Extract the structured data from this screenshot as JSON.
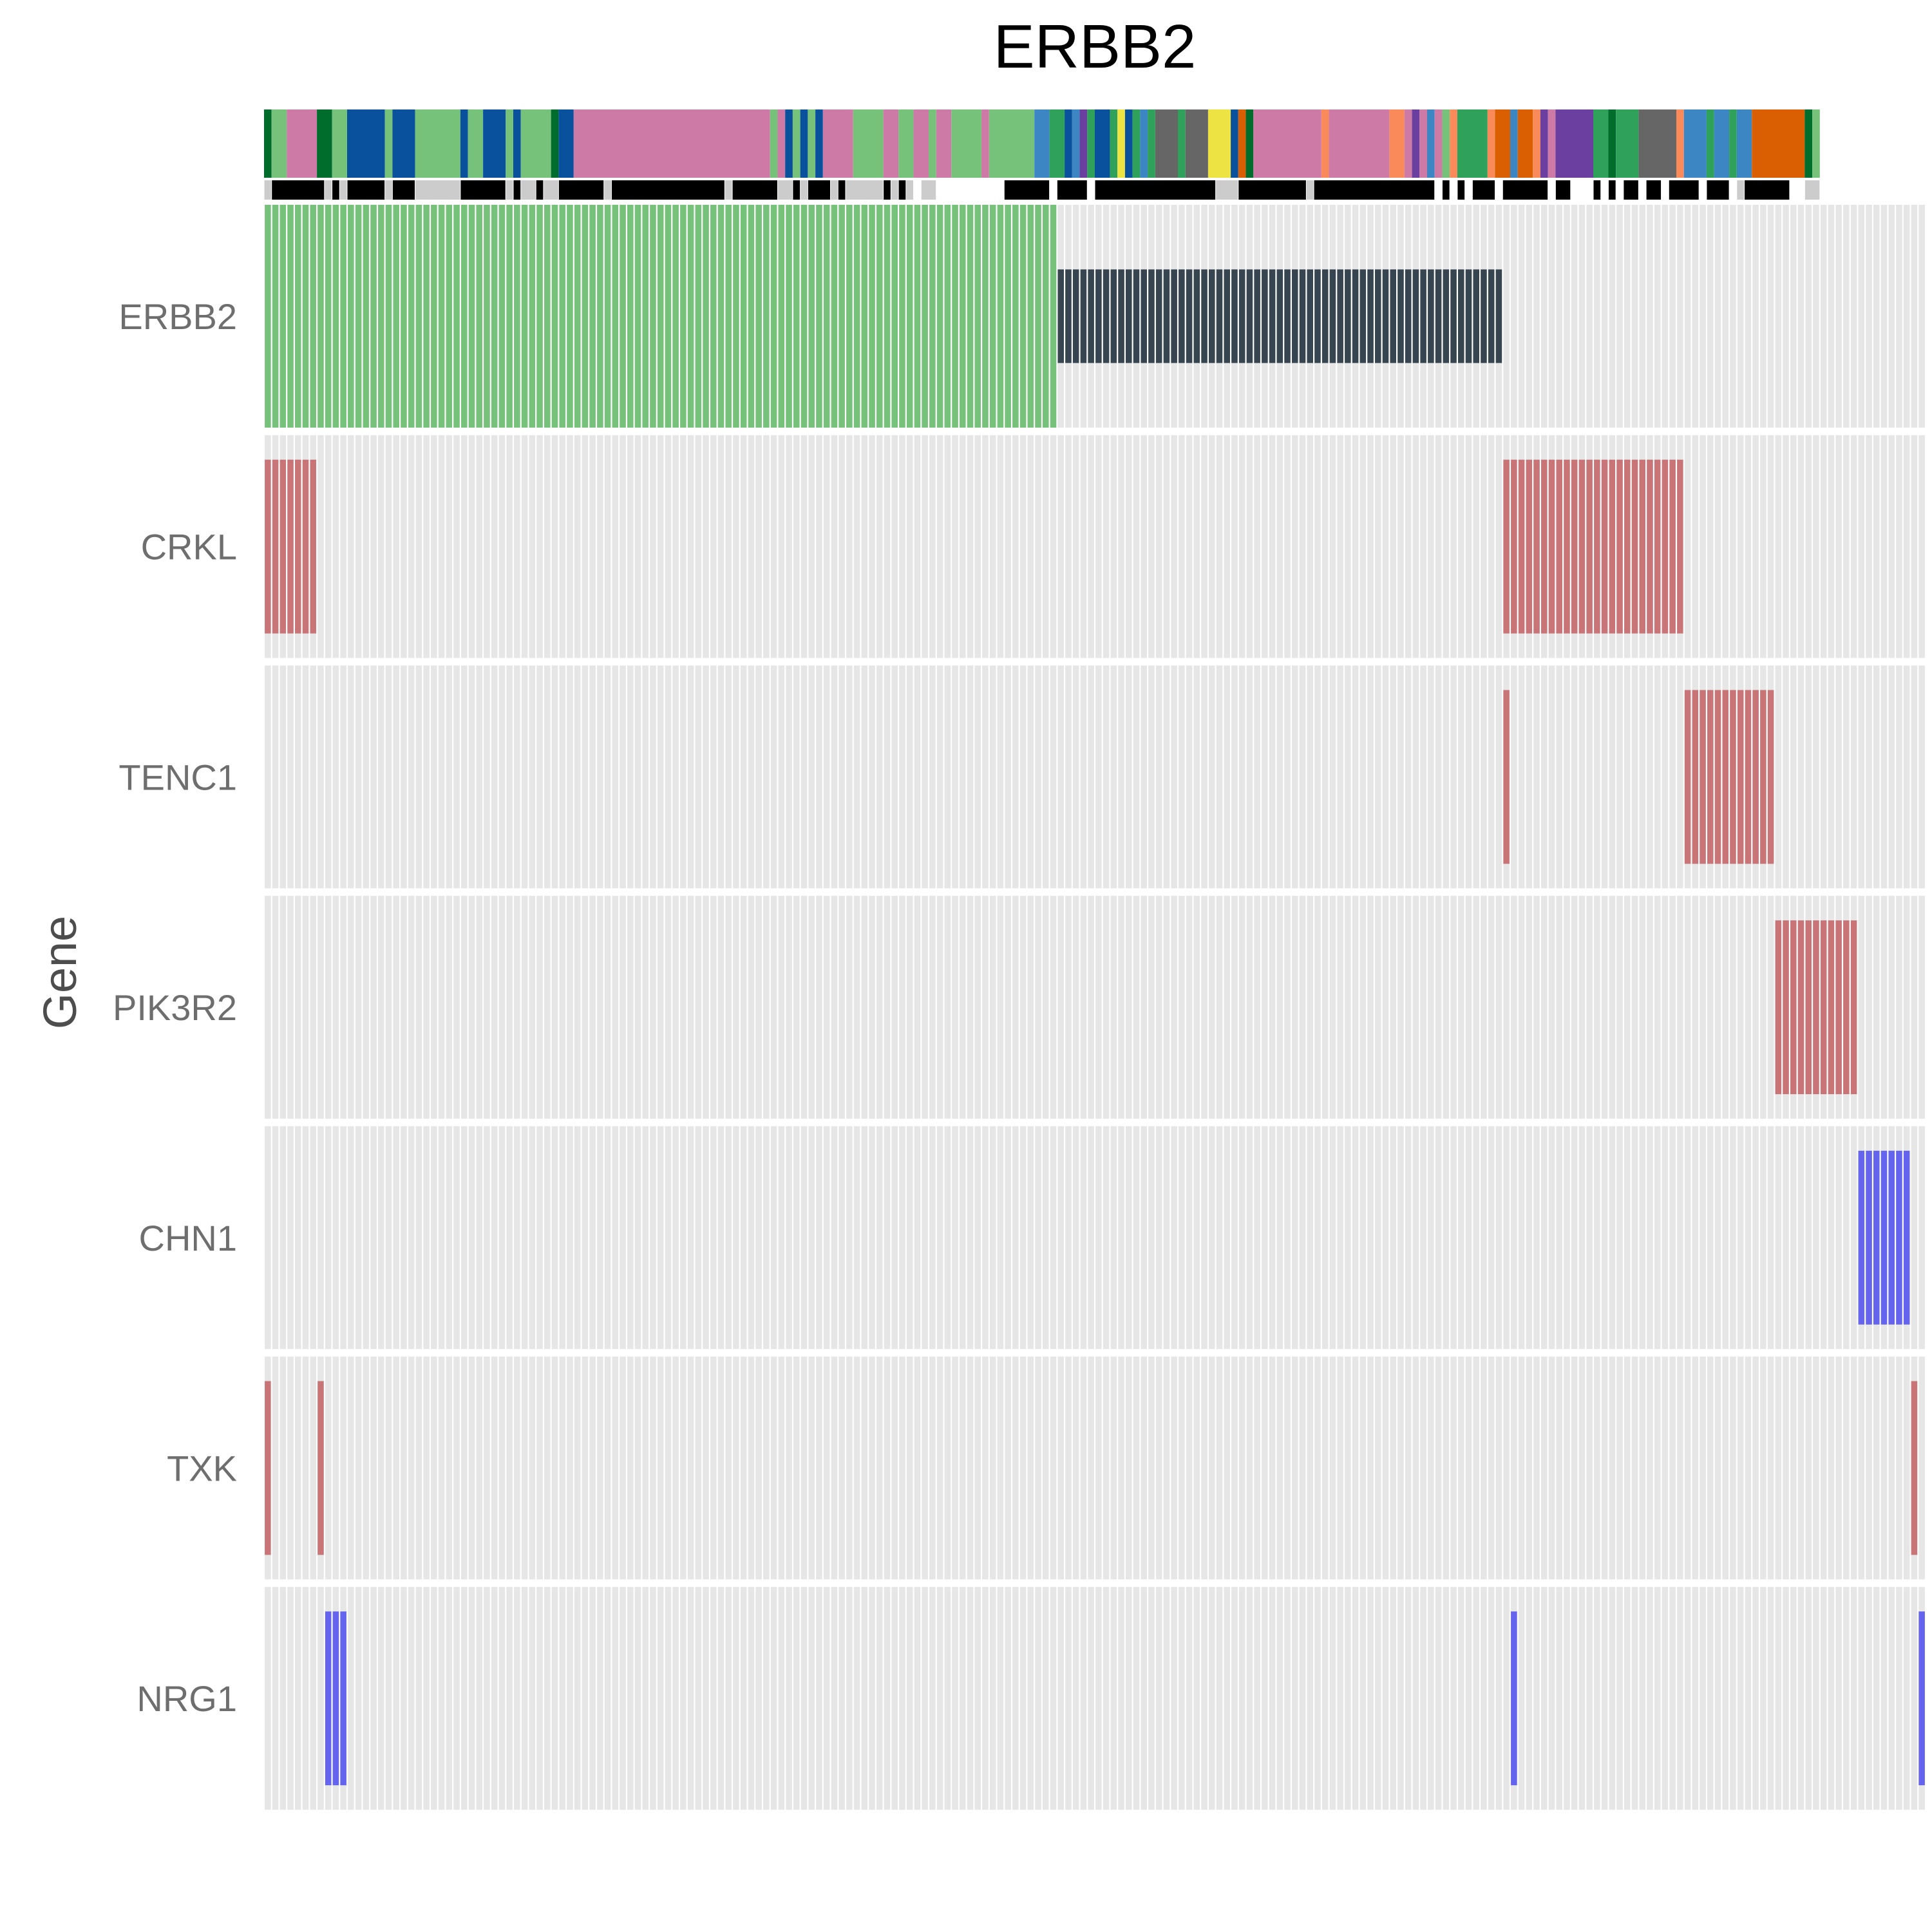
{
  "chart_data": {
    "type": "heatmap",
    "title": "ERBB2",
    "ylabel": "Gene",
    "xlabel": "",
    "n_samples": 220,
    "genes": [
      "ERBB2",
      "CRKL",
      "TENC1",
      "PIK3R2",
      "CHN1",
      "TXK",
      "NRG1"
    ],
    "background_color": "#e6e6e6",
    "alteration_colors": {
      "amplification_full": "#77c27b",
      "mutation_truncated": "#36454f",
      "amplification": "#c97578",
      "deletion": "#6464ee"
    },
    "alterations": [
      {
        "gene": "ERBB2",
        "type": "amplification_full",
        "sample_range": [
          0,
          104
        ]
      },
      {
        "gene": "ERBB2",
        "type": "mutation_truncated",
        "sample_range": [
          105,
          163
        ]
      },
      {
        "gene": "CRKL",
        "type": "amplification",
        "sample_range": [
          0,
          6
        ]
      },
      {
        "gene": "CRKL",
        "type": "amplification",
        "sample_range": [
          164,
          187
        ]
      },
      {
        "gene": "TENC1",
        "type": "amplification",
        "sample_range": [
          164,
          164
        ]
      },
      {
        "gene": "TENC1",
        "type": "amplification",
        "sample_range": [
          188,
          199
        ]
      },
      {
        "gene": "PIK3R2",
        "type": "amplification",
        "sample_range": [
          200,
          210
        ]
      },
      {
        "gene": "CHN1",
        "type": "deletion",
        "sample_range": [
          211,
          217
        ]
      },
      {
        "gene": "TXK",
        "type": "amplification",
        "sample_range": [
          0,
          0
        ]
      },
      {
        "gene": "TXK",
        "type": "amplification",
        "sample_range": [
          7,
          7
        ]
      },
      {
        "gene": "TXK",
        "type": "amplification",
        "sample_range": [
          218,
          218
        ]
      },
      {
        "gene": "NRG1",
        "type": "deletion",
        "sample_range": [
          8,
          10
        ]
      },
      {
        "gene": "NRG1",
        "type": "deletion",
        "sample_range": [
          165,
          165
        ]
      },
      {
        "gene": "NRG1",
        "type": "deletion",
        "sample_range": [
          219,
          219
        ]
      }
    ],
    "annotation_track_1": [
      {
        "color": "#006d2c",
        "n": 1
      },
      {
        "color": "#77c27b",
        "n": 2
      },
      {
        "color": "#cd7aa7",
        "n": 4
      },
      {
        "color": "#006d2c",
        "n": 2
      },
      {
        "color": "#77c27b",
        "n": 2
      },
      {
        "color": "#0a519d",
        "n": 5
      },
      {
        "color": "#77c27b",
        "n": 1
      },
      {
        "color": "#0a519d",
        "n": 3
      },
      {
        "color": "#77c27b",
        "n": 6
      },
      {
        "color": "#0a519d",
        "n": 1
      },
      {
        "color": "#77c27b",
        "n": 2
      },
      {
        "color": "#0a519d",
        "n": 3
      },
      {
        "color": "#77c27b",
        "n": 1
      },
      {
        "color": "#0a519d",
        "n": 1
      },
      {
        "color": "#77c27b",
        "n": 4
      },
      {
        "color": "#006d2c",
        "n": 1
      },
      {
        "color": "#0a519d",
        "n": 2
      },
      {
        "color": "#cd7aa7",
        "n": 26
      },
      {
        "color": "#77c27b",
        "n": 1
      },
      {
        "color": "#cd7aa7",
        "n": 1
      },
      {
        "color": "#0a519d",
        "n": 1
      },
      {
        "color": "#77c27b",
        "n": 1
      },
      {
        "color": "#0a519d",
        "n": 1
      },
      {
        "color": "#77c27b",
        "n": 1
      },
      {
        "color": "#0a519d",
        "n": 1
      },
      {
        "color": "#cd7aa7",
        "n": 4
      },
      {
        "color": "#77c27b",
        "n": 4
      },
      {
        "color": "#cd7aa7",
        "n": 2
      },
      {
        "color": "#77c27b",
        "n": 2
      },
      {
        "color": "#cd7aa7",
        "n": 2
      },
      {
        "color": "#77c27b",
        "n": 1
      },
      {
        "color": "#cd7aa7",
        "n": 2
      },
      {
        "color": "#77c27b",
        "n": 4
      },
      {
        "color": "#cd7aa7",
        "n": 1
      },
      {
        "color": "#77c27b",
        "n": 6
      },
      {
        "color": "#3d86c4",
        "n": 2
      },
      {
        "color": "#2fa15a",
        "n": 2
      },
      {
        "color": "#0a519d",
        "n": 1
      },
      {
        "color": "#3d86c4",
        "n": 1
      },
      {
        "color": "#6b3fa0",
        "n": 1
      },
      {
        "color": "#2fa15a",
        "n": 1
      },
      {
        "color": "#0a519d",
        "n": 2
      },
      {
        "color": "#2fa15a",
        "n": 1
      },
      {
        "color": "#ede342",
        "n": 1
      },
      {
        "color": "#0a519d",
        "n": 1
      },
      {
        "color": "#2fa15a",
        "n": 1
      },
      {
        "color": "#3d86c4",
        "n": 1
      },
      {
        "color": "#2fa15a",
        "n": 1
      },
      {
        "color": "#666666",
        "n": 3
      },
      {
        "color": "#2fa15a",
        "n": 1
      },
      {
        "color": "#666666",
        "n": 3
      },
      {
        "color": "#ede342",
        "n": 3
      },
      {
        "color": "#0a519d",
        "n": 1
      },
      {
        "color": "#d95f02",
        "n": 1
      },
      {
        "color": "#006d2c",
        "n": 1
      },
      {
        "color": "#cd7aa7",
        "n": 9
      },
      {
        "color": "#fb8a5a",
        "n": 1
      },
      {
        "color": "#cd7aa7",
        "n": 8
      },
      {
        "color": "#fb8a5a",
        "n": 2
      },
      {
        "color": "#cd7aa7",
        "n": 1
      },
      {
        "color": "#6b3fa0",
        "n": 1
      },
      {
        "color": "#cd7aa7",
        "n": 1
      },
      {
        "color": "#3d86c4",
        "n": 1
      },
      {
        "color": "#cd7aa7",
        "n": 1
      },
      {
        "color": "#77c27b",
        "n": 1
      },
      {
        "color": "#fb8a5a",
        "n": 1
      },
      {
        "color": "#2fa15a",
        "n": 4
      },
      {
        "color": "#fb8a5a",
        "n": 1
      },
      {
        "color": "#d95f02",
        "n": 2
      },
      {
        "color": "#3d86c4",
        "n": 1
      },
      {
        "color": "#d95f02",
        "n": 2
      },
      {
        "color": "#fb8a5a",
        "n": 1
      },
      {
        "color": "#6b3fa0",
        "n": 1
      },
      {
        "color": "#cd7aa7",
        "n": 1
      },
      {
        "color": "#6b3fa0",
        "n": 5
      },
      {
        "color": "#2fa15a",
        "n": 2
      },
      {
        "color": "#006d2c",
        "n": 1
      },
      {
        "color": "#2fa15a",
        "n": 3
      },
      {
        "color": "#666666",
        "n": 5
      },
      {
        "color": "#fb8a5a",
        "n": 1
      },
      {
        "color": "#3d86c4",
        "n": 3
      },
      {
        "color": "#2fa15a",
        "n": 1
      },
      {
        "color": "#3d86c4",
        "n": 2
      },
      {
        "color": "#2fa15a",
        "n": 1
      },
      {
        "color": "#3d86c4",
        "n": 2
      },
      {
        "color": "#d95f02",
        "n": 7
      },
      {
        "color": "#006d2c",
        "n": 1
      },
      {
        "color": "#77c27b",
        "n": 1
      }
    ],
    "annotation_track_2": [
      {
        "color": "#cccccc",
        "n": 1
      },
      {
        "color": "#000000",
        "n": 7
      },
      {
        "color": "#cccccc",
        "n": 1
      },
      {
        "color": "#000000",
        "n": 1
      },
      {
        "color": "#cccccc",
        "n": 1
      },
      {
        "color": "#000000",
        "n": 5
      },
      {
        "color": "#cccccc",
        "n": 1
      },
      {
        "color": "#000000",
        "n": 3
      },
      {
        "color": "#cccccc",
        "n": 6
      },
      {
        "color": "#000000",
        "n": 6
      },
      {
        "color": "#cccccc",
        "n": 1
      },
      {
        "color": "#000000",
        "n": 1
      },
      {
        "color": "#cccccc",
        "n": 2
      },
      {
        "color": "#000000",
        "n": 1
      },
      {
        "color": "#cccccc",
        "n": 2
      },
      {
        "color": "#000000",
        "n": 6
      },
      {
        "color": "#cccccc",
        "n": 1
      },
      {
        "color": "#000000",
        "n": 15
      },
      {
        "color": "#cccccc",
        "n": 1
      },
      {
        "color": "#000000",
        "n": 6
      },
      {
        "color": "#cccccc",
        "n": 2
      },
      {
        "color": "#000000",
        "n": 1
      },
      {
        "color": "#cccccc",
        "n": 1
      },
      {
        "color": "#000000",
        "n": 3
      },
      {
        "color": "#cccccc",
        "n": 1
      },
      {
        "color": "#000000",
        "n": 1
      },
      {
        "color": "#cccccc",
        "n": 5
      },
      {
        "color": "#000000",
        "n": 1
      },
      {
        "color": "#cccccc",
        "n": 1
      },
      {
        "color": "#000000",
        "n": 1
      },
      {
        "color": "#cccccc",
        "n": 1
      },
      {
        "color": "#ffffff",
        "n": 1
      },
      {
        "color": "#cccccc",
        "n": 2
      },
      {
        "color": "#ffffff",
        "n": 9
      },
      {
        "color": "#000000",
        "n": 6
      },
      {
        "color": "#ffffff",
        "n": 1
      },
      {
        "color": "#000000",
        "n": 4
      },
      {
        "color": "#ffffff",
        "n": 1
      },
      {
        "color": "#000000",
        "n": 16
      },
      {
        "color": "#cccccc",
        "n": 3
      },
      {
        "color": "#000000",
        "n": 9
      },
      {
        "color": "#cccccc",
        "n": 1
      },
      {
        "color": "#000000",
        "n": 16
      },
      {
        "color": "#ffffff",
        "n": 1
      },
      {
        "color": "#000000",
        "n": 1
      },
      {
        "color": "#ffffff",
        "n": 1
      },
      {
        "color": "#000000",
        "n": 1
      },
      {
        "color": "#ffffff",
        "n": 1
      },
      {
        "color": "#000000",
        "n": 3
      },
      {
        "color": "#ffffff",
        "n": 1
      },
      {
        "color": "#000000",
        "n": 6
      },
      {
        "color": "#ffffff",
        "n": 1
      },
      {
        "color": "#000000",
        "n": 2
      },
      {
        "color": "#ffffff",
        "n": 3
      },
      {
        "color": "#000000",
        "n": 1
      },
      {
        "color": "#ffffff",
        "n": 1
      },
      {
        "color": "#000000",
        "n": 1
      },
      {
        "color": "#ffffff",
        "n": 1
      },
      {
        "color": "#000000",
        "n": 2
      },
      {
        "color": "#ffffff",
        "n": 1
      },
      {
        "color": "#000000",
        "n": 2
      },
      {
        "color": "#ffffff",
        "n": 1
      },
      {
        "color": "#000000",
        "n": 4
      },
      {
        "color": "#ffffff",
        "n": 1
      },
      {
        "color": "#000000",
        "n": 3
      },
      {
        "color": "#ffffff",
        "n": 1
      },
      {
        "color": "#cccccc",
        "n": 1
      },
      {
        "color": "#000000",
        "n": 6
      },
      {
        "color": "#ffffff",
        "n": 2
      },
      {
        "color": "#cccccc",
        "n": 2
      }
    ]
  }
}
